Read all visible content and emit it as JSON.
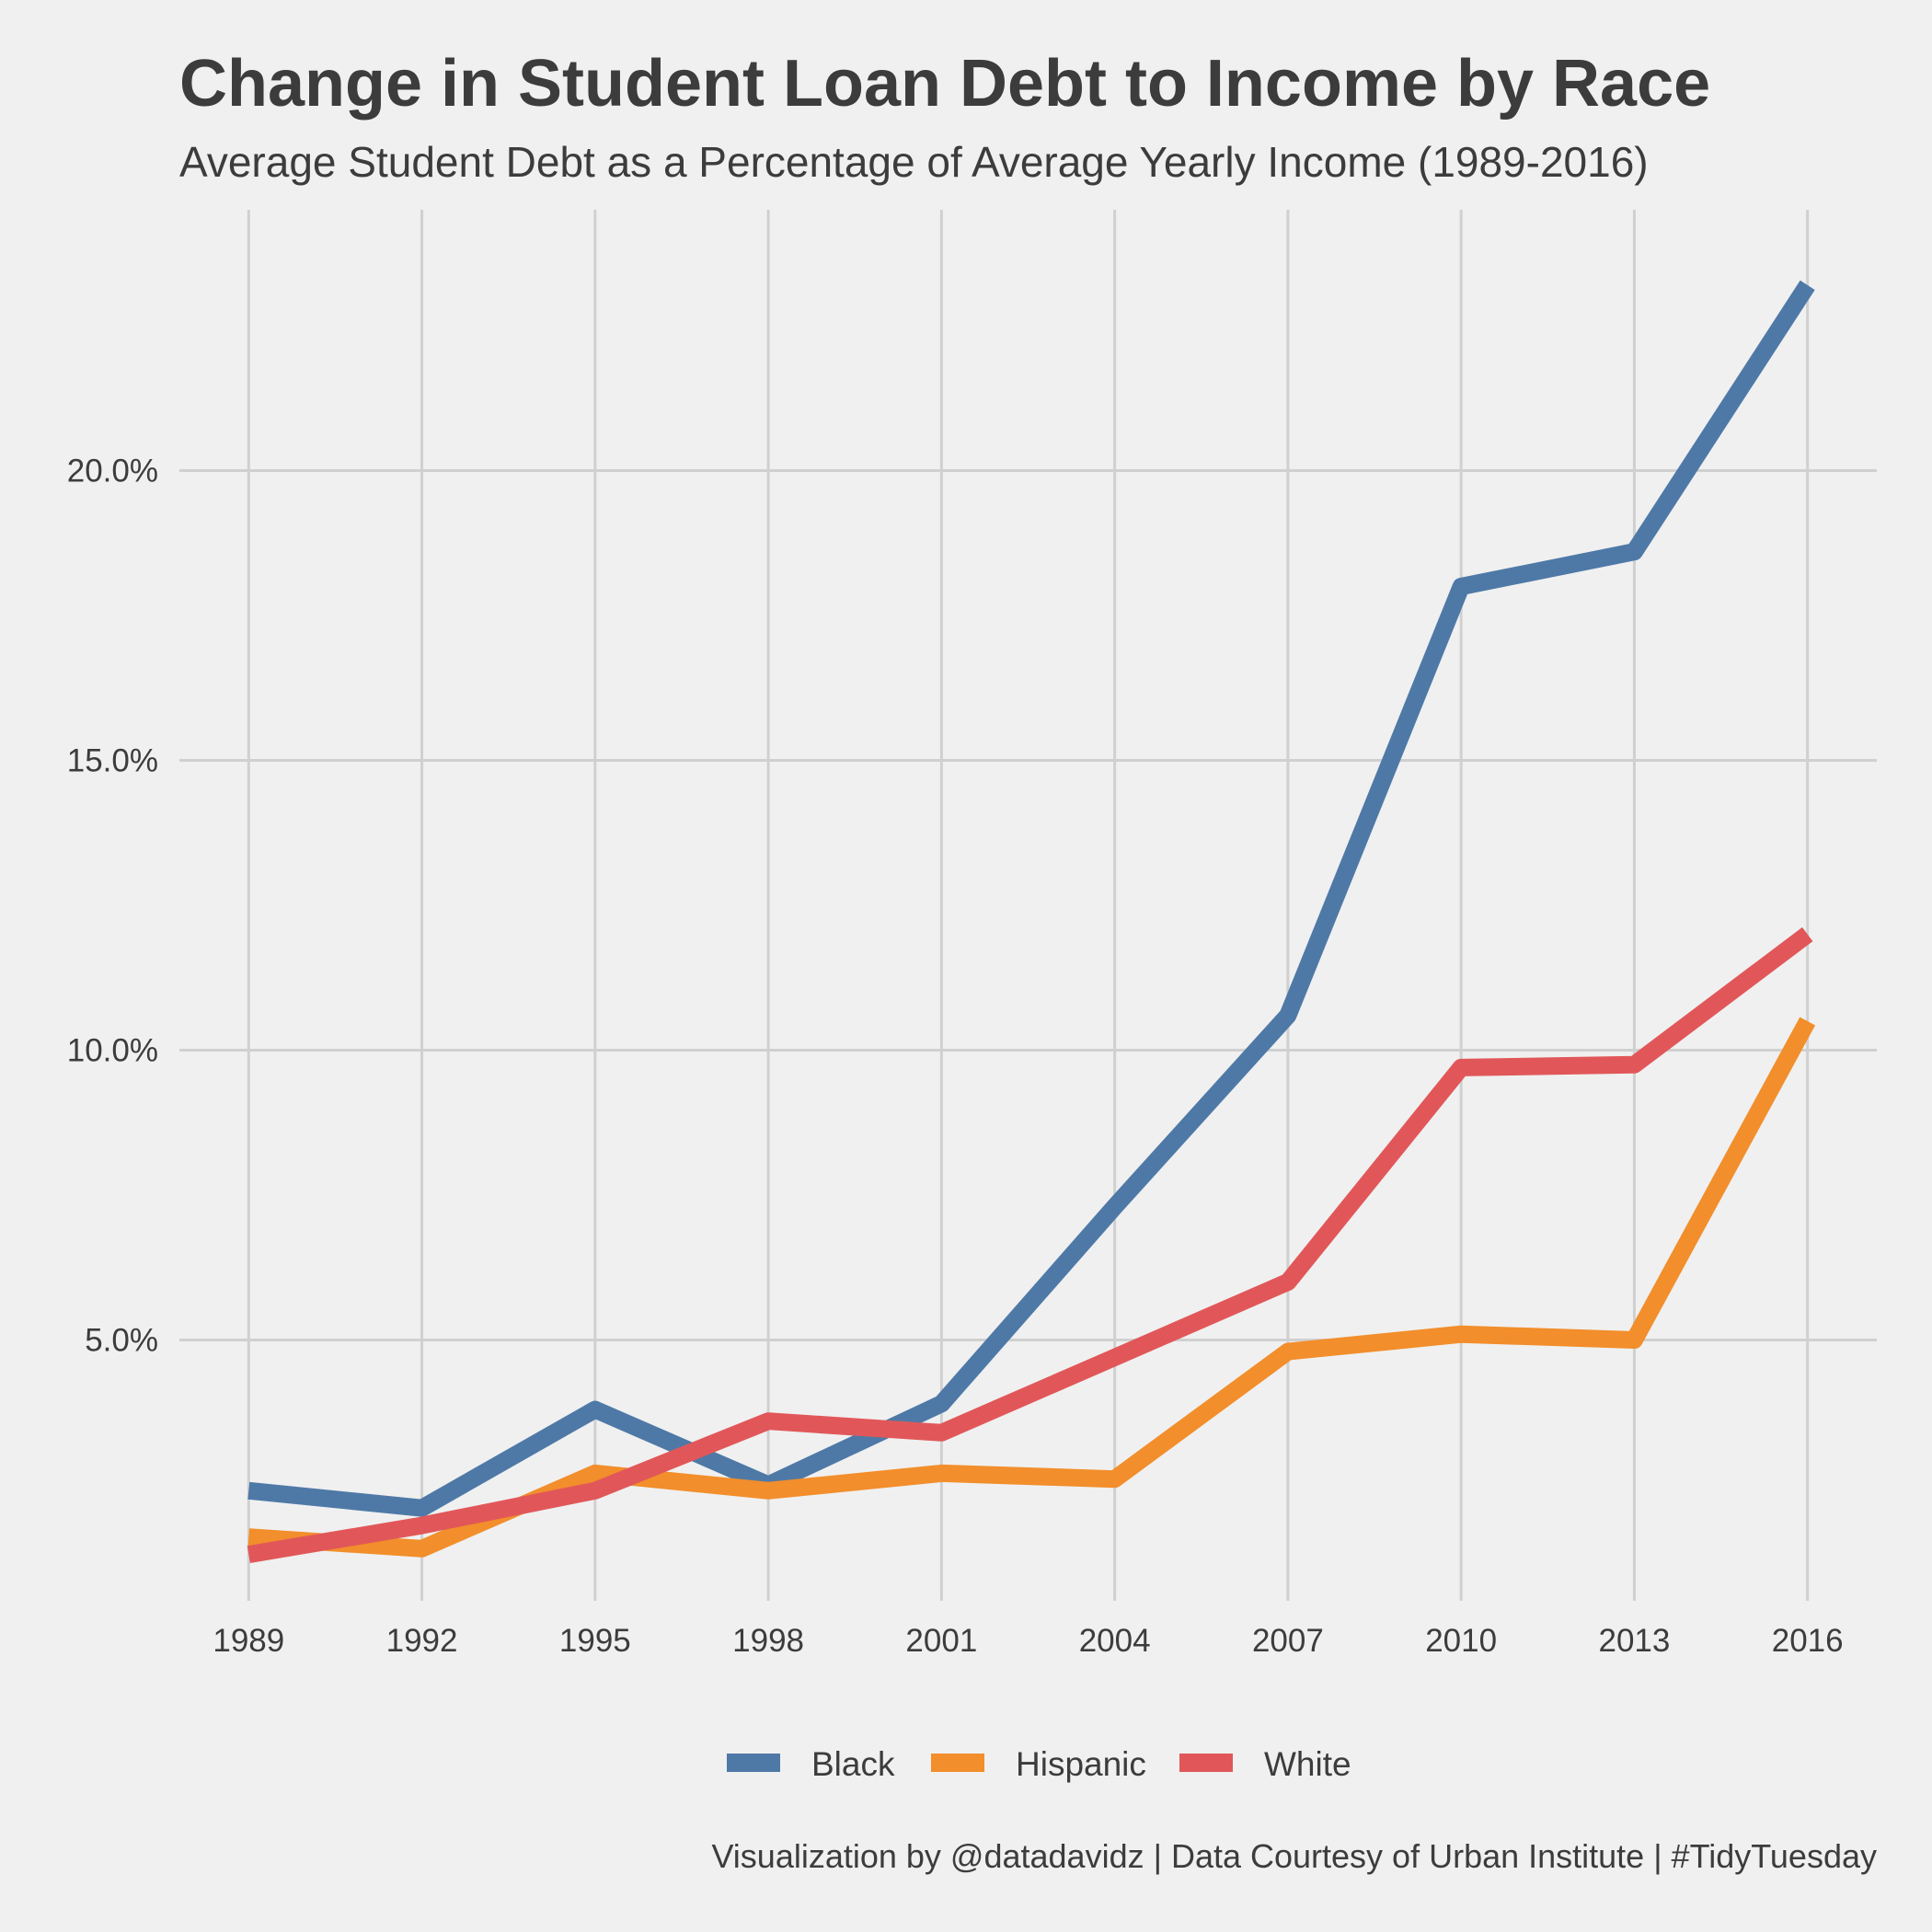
{
  "chart_data": {
    "type": "line",
    "title": "Change in Student Loan Debt to Income by Race",
    "subtitle": "Average Student Debt as a Percentage of Average Yearly Income (1989-2016)",
    "caption": "Visualization by @datadavidz | Data Courtesy of Urban Institute | #TidyTuesday",
    "xlabel": "",
    "ylabel": "",
    "x": [
      1989,
      1992,
      1995,
      1998,
      2001,
      2004,
      2007,
      2010,
      2013,
      2016
    ],
    "x_tick_labels": [
      "1989",
      "1992",
      "1995",
      "1998",
      "2001",
      "2004",
      "2007",
      "2010",
      "2013",
      "2016"
    ],
    "xlim": [
      1987.8,
      2017.2
    ],
    "ylim": [
      0.5,
      24.5
    ],
    "y_ticks": [
      5,
      10,
      15,
      20
    ],
    "y_tick_labels": [
      "5.0%",
      "10.0%",
      "15.0%",
      "20.0%"
    ],
    "grid": true,
    "legend_position": "bottom",
    "series": [
      {
        "name": "Black",
        "color": "#4e79a7",
        "values": [
          2.4,
          2.1,
          3.8,
          2.5,
          3.9,
          7.3,
          10.6,
          18.0,
          18.6,
          23.2
        ]
      },
      {
        "name": "Hispanic",
        "color": "#f28e2b",
        "values": [
          1.6,
          1.4,
          2.7,
          2.4,
          2.7,
          2.6,
          4.8,
          5.1,
          5.0,
          10.5
        ]
      },
      {
        "name": "White",
        "color": "#e15759",
        "values": [
          1.3,
          1.8,
          2.4,
          3.6,
          3.4,
          4.7,
          6.0,
          9.7,
          9.75,
          12.0
        ]
      }
    ]
  }
}
